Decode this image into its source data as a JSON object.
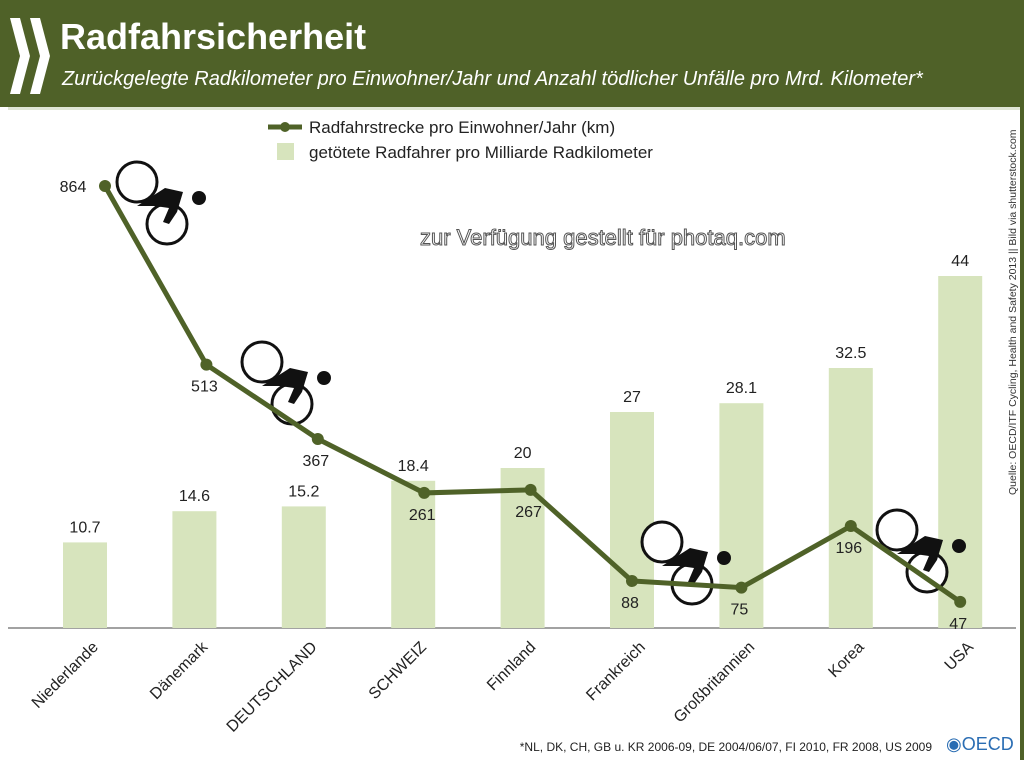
{
  "header": {
    "title": "Radfahrsicherheit",
    "subtitle": "Zurückgelegte Radkilometer pro Einwohner/Jahr und Anzahl tödlicher Unfälle pro Mrd. Kilometer*"
  },
  "source": "Quelle: OECD/ITF Cycling, Health and Safety 2013 || Bild via shutterstock.com",
  "footnote": "*NL, DK, CH, GB u. KR 2006-09, DE 2004/06/07, FI 2010, FR 2008, US 2009",
  "logo": "OECD",
  "watermark": "zur Verfügung gestellt für photaq.com",
  "colors": {
    "header": "#4f6128",
    "line": "#4f6228",
    "bar": "#d7e4bd"
  },
  "chart_data": {
    "type": "bar+line",
    "categories": [
      "Niederlande",
      "Dänemark",
      "DEUTSCHLAND",
      "SCHWEIZ",
      "Finnland",
      "Frankreich",
      "Großbritannien",
      "Korea",
      "USA"
    ],
    "series": [
      {
        "name": "Radfahrstrecke pro Einwohner/Jahr (km)",
        "type": "line",
        "values": [
          864,
          513,
          367,
          261,
          267,
          88,
          75,
          196,
          47
        ],
        "labels": [
          "864",
          "513",
          "367",
          "261",
          "267",
          "88",
          "75",
          "196",
          "47"
        ]
      },
      {
        "name": "getötete Radfahrer pro Milliarde Radkilometer",
        "type": "bar",
        "values": [
          10.7,
          14.6,
          15.2,
          18.4,
          20,
          27,
          28.1,
          32.5,
          44
        ],
        "labels": [
          "10.7",
          "14.6",
          "15.2",
          "18.4",
          "20",
          "27",
          "28.1",
          "32.5",
          "44"
        ]
      }
    ],
    "legend": "top-center",
    "grid": false
  }
}
